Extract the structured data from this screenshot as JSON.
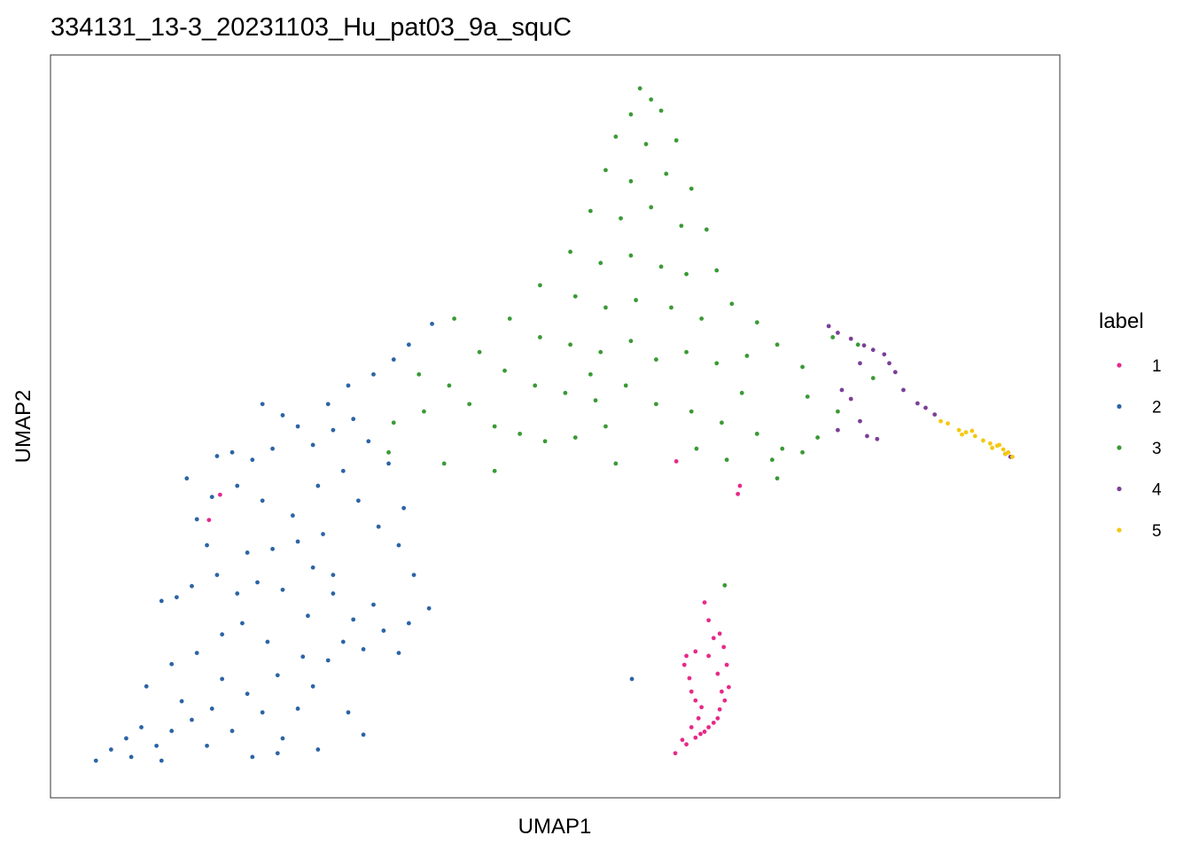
{
  "chart_data": {
    "type": "scatter",
    "title": "334131_13-3_20231103_Hu_pat03_9a_squC",
    "x_label": "UMAP1",
    "y_label": "UMAP2",
    "legend_title": "label",
    "xlim": [
      0,
      100
    ],
    "ylim": [
      0,
      100
    ],
    "series": [
      {
        "name": "1",
        "color": "#e7298a",
        "x": [
          64.8,
          65.2,
          65.7,
          66.3,
          66.7,
          67.0,
          67.2,
          66.8,
          66.3,
          65.7,
          64.8,
          63.9,
          63.0,
          62.6,
          61.9,
          63.5,
          64.2,
          64.5,
          63.9,
          63.5,
          63.3,
          62.8,
          63.0,
          63.9,
          65.2,
          66.1,
          66.5,
          66.1,
          65.2,
          64.4,
          16.8,
          15.7,
          62.0,
          68.1,
          68.3
        ],
        "y": [
          26.3,
          23.9,
          21.5,
          22.1,
          20.3,
          17.9,
          14.9,
          13.1,
          11.9,
          10.1,
          8.9,
          8.1,
          7.2,
          7.8,
          6.0,
          9.5,
          10.7,
          12.2,
          13.1,
          14.3,
          16.1,
          17.9,
          19.1,
          19.7,
          19.1,
          16.7,
          14.3,
          10.7,
          9.5,
          8.6,
          40.8,
          37.4,
          45.3,
          40.9,
          42.0
        ]
      },
      {
        "name": "2",
        "color": "#2c64a6",
        "x": [
          4.5,
          6.0,
          7.5,
          9.0,
          8.0,
          10.5,
          12.0,
          11.0,
          14.0,
          13.0,
          16.0,
          15.5,
          18.0,
          19.5,
          17.0,
          21.0,
          20.0,
          23.0,
          24.5,
          22.5,
          26.0,
          25.0,
          27.5,
          29.0,
          31.0,
          30.0,
          33.0,
          34.5,
          35.5,
          37.5,
          32.0,
          28.0,
          25.5,
          21.5,
          19.0,
          17.0,
          14.5,
          12.0,
          11.0,
          12.5,
          14.0,
          16.5,
          18.5,
          20.5,
          23.0,
          26.0,
          28.0,
          27.0,
          24.5,
          22.0,
          19.5,
          15.5,
          14.5,
          16.0,
          18.5,
          21.0,
          24.0,
          26.5,
          29.0,
          30.5,
          32.5,
          34.5,
          35.0,
          13.5,
          16.5,
          18.0,
          20.0,
          22.0,
          24.5,
          26.0,
          28.0,
          30.0,
          31.5,
          27.5,
          29.5,
          32.0,
          34.0,
          35.5,
          37.8,
          21.0,
          23.0,
          33.5,
          36.0,
          9.5,
          22.5,
          26.5,
          29.5,
          31.0,
          57.6
        ],
        "y": [
          5.0,
          6.5,
          8.0,
          9.5,
          5.5,
          7.0,
          9.0,
          5.0,
          10.5,
          13.0,
          12.0,
          7.0,
          9.0,
          14.0,
          16.0,
          11.5,
          5.5,
          8.0,
          12.0,
          16.5,
          15.0,
          19.0,
          18.5,
          21.0,
          20.0,
          24.0,
          22.5,
          19.5,
          23.5,
          25.5,
          26.0,
          27.5,
          24.5,
          21.0,
          23.5,
          22.0,
          19.5,
          18.0,
          26.5,
          27.0,
          28.5,
          30.0,
          27.5,
          29.0,
          28.0,
          31.0,
          30.0,
          35.5,
          34.5,
          33.5,
          33.0,
          34.0,
          37.5,
          40.5,
          42.0,
          40.0,
          38.0,
          42.0,
          44.0,
          40.0,
          36.5,
          34.0,
          39.0,
          43.0,
          46.0,
          46.5,
          45.5,
          47.0,
          50.0,
          47.5,
          49.5,
          51.0,
          48.0,
          53.0,
          55.5,
          57.0,
          59.0,
          61.0,
          63.8,
          53.0,
          51.5,
          45.0,
          30.0,
          15.0,
          6.0,
          6.5,
          11.5,
          8.5,
          16.0
        ]
      },
      {
        "name": "3",
        "color": "#3a9a35",
        "x": [
          58.4,
          59.5,
          57.5,
          60.5,
          56.0,
          59.0,
          62.0,
          55.0,
          57.5,
          61.0,
          63.5,
          53.5,
          56.5,
          59.5,
          62.5,
          65.0,
          51.5,
          54.5,
          57.5,
          60.5,
          63.0,
          66.0,
          48.5,
          52.0,
          55.0,
          58.0,
          61.5,
          64.5,
          67.5,
          70.0,
          45.5,
          48.5,
          51.5,
          54.5,
          57.5,
          60.0,
          63.0,
          66.0,
          69.0,
          72.0,
          74.5,
          77.5,
          80.0,
          42.5,
          45.0,
          48.0,
          51.0,
          54.0,
          57.0,
          60.0,
          63.5,
          66.5,
          70.0,
          72.5,
          74.5,
          76.0,
          39.5,
          41.5,
          44.0,
          46.5,
          49.0,
          52.0,
          55.0,
          37.0,
          34.0,
          36.5,
          40.0,
          44.0,
          78.0,
          81.5,
          67.0,
          72.0,
          71.5,
          64.0,
          56.0,
          53.5,
          68.5,
          75.0,
          33.5,
          39.0,
          66.8
        ],
        "y": [
          95.5,
          94.0,
          92.0,
          92.5,
          89.0,
          88.0,
          88.5,
          84.5,
          83.0,
          84.0,
          82.0,
          79.0,
          78.0,
          79.5,
          77.0,
          76.5,
          73.5,
          72.0,
          73.0,
          71.5,
          70.5,
          71.0,
          69.0,
          67.5,
          66.0,
          67.0,
          66.0,
          64.5,
          66.5,
          64.0,
          64.5,
          62.0,
          61.0,
          60.0,
          61.5,
          59.0,
          60.0,
          58.5,
          59.5,
          61.0,
          58.0,
          62.0,
          61.0,
          60.0,
          57.5,
          55.5,
          54.5,
          53.5,
          55.5,
          53.0,
          52.0,
          50.5,
          49.0,
          47.0,
          46.5,
          48.5,
          55.5,
          53.0,
          50.0,
          49.0,
          48.0,
          48.5,
          50.0,
          52.0,
          50.5,
          57.0,
          64.5,
          44.0,
          52.0,
          56.5,
          45.5,
          43.0,
          45.5,
          47.0,
          45.0,
          57.0,
          54.5,
          54.0,
          46.5,
          45.0,
          28.6
        ]
      },
      {
        "name": "4",
        "color": "#7b3f98",
        "x": [
          77.1,
          78.0,
          79.3,
          80.6,
          81.5,
          82.6,
          83.1,
          83.7,
          84.5,
          85.9,
          86.7,
          87.6,
          78.4,
          79.3,
          78.0,
          80.2,
          80.9,
          81.9,
          80.2,
          94.6,
          95.1
        ],
        "y": [
          63.5,
          62.6,
          61.8,
          60.9,
          60.3,
          59.7,
          58.5,
          57.3,
          54.9,
          53.1,
          52.5,
          51.6,
          54.9,
          53.7,
          49.5,
          50.7,
          48.7,
          48.3,
          58.5,
          46.3,
          45.9
        ]
      },
      {
        "name": "5",
        "color": "#f5c710",
        "x": [
          88.2,
          88.9,
          90.0,
          90.7,
          91.6,
          92.4,
          93.1,
          93.8,
          94.4,
          94.9,
          95.3,
          90.3,
          91.3,
          93.3,
          94.0,
          94.6
        ],
        "y": [
          50.7,
          50.4,
          49.5,
          49.2,
          48.7,
          48.1,
          47.7,
          47.4,
          46.9,
          46.5,
          45.9,
          48.9,
          49.4,
          47.1,
          47.5,
          46.3
        ]
      }
    ]
  }
}
